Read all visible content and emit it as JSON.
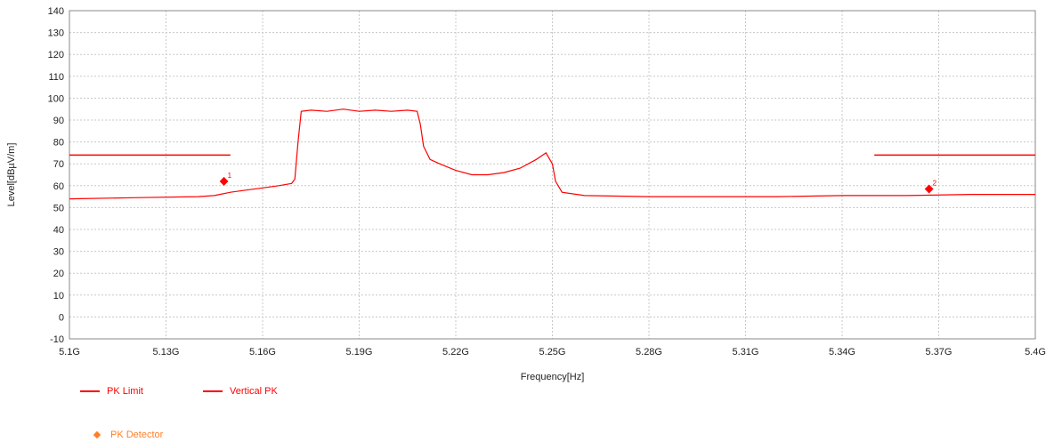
{
  "chart_data": {
    "type": "line",
    "xlabel": "Frequency[Hz]",
    "ylabel": "Level[dBµV/m]",
    "xlim": [
      5.1,
      5.4
    ],
    "ylim": [
      -10,
      140
    ],
    "x_ticks": [
      "5.1G",
      "5.13G",
      "5.16G",
      "5.19G",
      "5.22G",
      "5.25G",
      "5.28G",
      "5.31G",
      "5.34G",
      "5.37G",
      "5.4G"
    ],
    "y_ticks": [
      -10,
      0,
      10,
      20,
      30,
      40,
      50,
      60,
      70,
      80,
      90,
      100,
      110,
      120,
      130,
      140
    ],
    "grid": true,
    "legend_position": "bottom-left",
    "colors": {
      "pk_limit": "#ff0000",
      "vertical_pk": "#ff0000",
      "pk_detector": "#ff0000",
      "legend_detector": "#ff7f27"
    },
    "series": [
      {
        "name": "PK Limit",
        "segments": [
          [
            [
              5.1,
              74
            ],
            [
              5.15,
              74
            ]
          ],
          [
            [
              5.35,
              74
            ],
            [
              5.4,
              74
            ]
          ]
        ]
      },
      {
        "name": "Vertical PK",
        "x": [
          5.1,
          5.12,
          5.14,
          5.145,
          5.15,
          5.155,
          5.16,
          5.165,
          5.169,
          5.17,
          5.171,
          5.172,
          5.175,
          5.18,
          5.185,
          5.19,
          5.195,
          5.2,
          5.205,
          5.208,
          5.209,
          5.21,
          5.212,
          5.215,
          5.22,
          5.225,
          5.23,
          5.235,
          5.24,
          5.245,
          5.248,
          5.25,
          5.251,
          5.253,
          5.26,
          5.28,
          5.3,
          5.32,
          5.34,
          5.36,
          5.38,
          5.4
        ],
        "y": [
          54,
          54.5,
          55,
          55.5,
          57,
          58,
          59,
          60,
          61,
          63,
          80,
          94,
          94.5,
          94,
          95,
          94,
          94.5,
          94,
          94.5,
          94,
          88,
          78,
          72,
          70,
          67,
          65,
          65,
          66,
          68,
          72,
          75,
          70,
          62,
          57,
          55.5,
          55,
          55,
          55,
          55.5,
          55.5,
          56,
          56
        ]
      },
      {
        "name": "PK Detector",
        "points": [
          {
            "x": 5.148,
            "y": 62,
            "label": "1"
          },
          {
            "x": 5.367,
            "y": 58.5,
            "label": "2"
          }
        ]
      }
    ]
  },
  "legend": {
    "pk_limit": "PK Limit",
    "vertical_pk": "Vertical PK",
    "pk_detector": "PK Detector"
  }
}
